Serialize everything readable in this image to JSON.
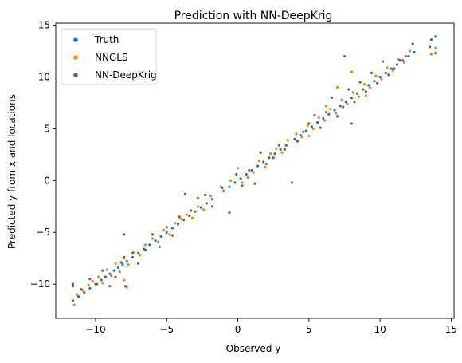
{
  "chart_data": {
    "type": "scatter",
    "title": "Prediction with NN-DeepKrig",
    "xlabel": "Observed y",
    "ylabel": "Predicted y from x and locations",
    "xlim": [
      -12.8,
      15.2
    ],
    "ylim": [
      -13.3,
      15.2
    ],
    "xticks": [
      -10,
      -5,
      0,
      5,
      10,
      15
    ],
    "yticks": [
      -10,
      -5,
      0,
      5,
      10,
      15
    ],
    "grid": false,
    "legend_position": "top-left",
    "series": [
      {
        "name": "Truth",
        "color": "#1f77b4",
        "points": [
          [
            -11.6,
            -11.6
          ],
          [
            -11.2,
            -11.2
          ],
          [
            -10.8,
            -10.8
          ],
          [
            -10.4,
            -10.4
          ],
          [
            -10.0,
            -10.0
          ],
          [
            -9.6,
            -9.6
          ],
          [
            -9.3,
            -9.3
          ],
          [
            -9.0,
            -9.0
          ],
          [
            -8.7,
            -8.7
          ],
          [
            -8.4,
            -8.4
          ],
          [
            -8.1,
            -8.1
          ],
          [
            -7.8,
            -7.8
          ],
          [
            -7.4,
            -7.4
          ],
          [
            -7.0,
            -7.0
          ],
          [
            -6.6,
            -6.6
          ],
          [
            -6.2,
            -6.2
          ],
          [
            -5.8,
            -5.8
          ],
          [
            -5.4,
            -5.4
          ],
          [
            -5.0,
            -5.0
          ],
          [
            -4.6,
            -4.6
          ],
          [
            -4.2,
            -4.2
          ],
          [
            -3.8,
            -3.8
          ],
          [
            -3.4,
            -3.4
          ],
          [
            -3.0,
            -3.0
          ],
          [
            -2.6,
            -2.6
          ],
          [
            -2.2,
            -2.2
          ],
          [
            -1.8,
            -1.8
          ],
          [
            -1.0,
            -1.0
          ],
          [
            -0.6,
            -0.6
          ],
          [
            -0.2,
            -0.2
          ],
          [
            0.2,
            0.2
          ],
          [
            0.6,
            0.6
          ],
          [
            1.0,
            1.0
          ],
          [
            1.4,
            1.4
          ],
          [
            1.8,
            1.8
          ],
          [
            2.2,
            2.2
          ],
          [
            2.6,
            2.6
          ],
          [
            3.0,
            3.0
          ],
          [
            3.4,
            3.4
          ],
          [
            4.0,
            4.0
          ],
          [
            4.4,
            4.4
          ],
          [
            4.8,
            4.8
          ],
          [
            5.2,
            5.2
          ],
          [
            5.6,
            5.6
          ],
          [
            6.0,
            6.0
          ],
          [
            6.4,
            6.4
          ],
          [
            6.8,
            6.8
          ],
          [
            7.2,
            7.2
          ],
          [
            7.6,
            7.6
          ],
          [
            8.0,
            8.0
          ],
          [
            8.4,
            8.4
          ],
          [
            8.8,
            8.8
          ],
          [
            9.2,
            9.2
          ],
          [
            9.6,
            9.6
          ],
          [
            10.0,
            10.0
          ],
          [
            10.4,
            10.4
          ],
          [
            10.8,
            10.8
          ],
          [
            11.2,
            11.2
          ],
          [
            11.6,
            11.6
          ],
          [
            12.0,
            12.0
          ],
          [
            12.4,
            12.4
          ],
          [
            13.6,
            13.6
          ],
          [
            13.9,
            13.9
          ]
        ]
      },
      {
        "name": "NNGLS",
        "color": "#ff7f0e",
        "points": [
          [
            -11.5,
            -12.0
          ],
          [
            -11.3,
            -11.0
          ],
          [
            -10.9,
            -10.6
          ],
          [
            -10.5,
            -10.1
          ],
          [
            -10.2,
            -9.7
          ],
          [
            -9.8,
            -9.3
          ],
          [
            -9.5,
            -9.9
          ],
          [
            -9.2,
            -8.6
          ],
          [
            -8.9,
            -9.2
          ],
          [
            -8.6,
            -8.0
          ],
          [
            -8.3,
            -8.8
          ],
          [
            -8.0,
            -7.5
          ],
          [
            -7.7,
            -8.1
          ],
          [
            -7.3,
            -6.9
          ],
          [
            -6.9,
            -7.2
          ],
          [
            -6.5,
            -6.2
          ],
          [
            -6.0,
            -5.6
          ],
          [
            -5.6,
            -5.9
          ],
          [
            -5.2,
            -4.8
          ],
          [
            -4.8,
            -5.2
          ],
          [
            -4.4,
            -4.1
          ],
          [
            -4.0,
            -3.7
          ],
          [
            -3.6,
            -3.3
          ],
          [
            -3.2,
            -3.6
          ],
          [
            -2.8,
            -2.5
          ],
          [
            -2.4,
            -2.8
          ],
          [
            -1.9,
            -1.5
          ],
          [
            -1.2,
            -0.6
          ],
          [
            -0.5,
            0.0
          ],
          [
            0.0,
            1.2
          ],
          [
            0.3,
            -0.2
          ],
          [
            0.7,
            0.3
          ],
          [
            1.1,
            0.8
          ],
          [
            1.5,
            1.9
          ],
          [
            1.9,
            1.3
          ],
          [
            2.3,
            2.6
          ],
          [
            2.7,
            3.1
          ],
          [
            3.1,
            2.7
          ],
          [
            3.5,
            3.9
          ],
          [
            4.1,
            4.5
          ],
          [
            4.5,
            4.2
          ],
          [
            4.9,
            5.3
          ],
          [
            5.3,
            5.0
          ],
          [
            5.7,
            6.1
          ],
          [
            6.1,
            5.8
          ],
          [
            6.5,
            6.9
          ],
          [
            6.9,
            6.5
          ],
          [
            7.3,
            7.8
          ],
          [
            7.7,
            7.4
          ],
          [
            8.1,
            8.5
          ],
          [
            8.5,
            8.1
          ],
          [
            8.9,
            9.3
          ],
          [
            9.3,
            9.0
          ],
          [
            9.7,
            10.1
          ],
          [
            10.1,
            9.8
          ],
          [
            10.5,
            10.9
          ],
          [
            10.9,
            10.6
          ],
          [
            11.3,
            11.7
          ],
          [
            11.7,
            11.4
          ],
          [
            12.1,
            12.5
          ],
          [
            13.6,
            12.2
          ],
          [
            13.9,
            12.8
          ],
          [
            7.0,
            9.0
          ],
          [
            8.0,
            10.5
          ],
          [
            9.0,
            8.2
          ],
          [
            -8.0,
            -9.6
          ],
          [
            -7.8,
            -10.3
          ],
          [
            5.0,
            4.3
          ],
          [
            6.2,
            7.2
          ]
        ]
      },
      {
        "name": "NN-DeepKrig",
        "color": "#8c564b",
        "points": [
          [
            -11.6,
            -10.2
          ],
          [
            -11.0,
            -10.5
          ],
          [
            -10.4,
            -9.5
          ],
          [
            -9.9,
            -10.0
          ],
          [
            -9.5,
            -8.7
          ],
          [
            -9.0,
            -10.2
          ],
          [
            -8.6,
            -9.3
          ],
          [
            -8.2,
            -7.9
          ],
          [
            -8.0,
            -7.4
          ],
          [
            -7.9,
            -10.2
          ],
          [
            -7.4,
            -7.0
          ],
          [
            -7.0,
            -8.0
          ],
          [
            -6.5,
            -6.7
          ],
          [
            -6.0,
            -5.2
          ],
          [
            -5.5,
            -6.4
          ],
          [
            -5.0,
            -4.5
          ],
          [
            -4.6,
            -5.3
          ],
          [
            -4.1,
            -3.5
          ],
          [
            -3.7,
            -1.3
          ],
          [
            -3.3,
            -2.9
          ],
          [
            -2.8,
            -1.7
          ],
          [
            -2.3,
            -1.4
          ],
          [
            -1.8,
            -2.5
          ],
          [
            -1.1,
            -0.7
          ],
          [
            -0.6,
            -3.1
          ],
          [
            -0.1,
            0.6
          ],
          [
            0.3,
            -0.5
          ],
          [
            0.8,
            1.0
          ],
          [
            1.2,
            -0.3
          ],
          [
            1.6,
            2.7
          ],
          [
            2.0,
            1.6
          ],
          [
            2.5,
            2.2
          ],
          [
            2.9,
            3.4
          ],
          [
            3.3,
            3.0
          ],
          [
            3.8,
            -0.2
          ],
          [
            4.2,
            3.8
          ],
          [
            4.6,
            4.7
          ],
          [
            5.0,
            5.5
          ],
          [
            5.4,
            6.3
          ],
          [
            5.8,
            5.1
          ],
          [
            6.2,
            6.6
          ],
          [
            6.6,
            8.0
          ],
          [
            7.0,
            6.2
          ],
          [
            7.4,
            7.1
          ],
          [
            7.8,
            8.8
          ],
          [
            8.2,
            7.6
          ],
          [
            8.6,
            9.5
          ],
          [
            9.0,
            8.6
          ],
          [
            9.4,
            10.4
          ],
          [
            9.8,
            9.4
          ],
          [
            10.2,
            11.5
          ],
          [
            10.6,
            10.2
          ],
          [
            11.0,
            10.8
          ],
          [
            11.4,
            11.6
          ],
          [
            11.8,
            12.0
          ],
          [
            12.3,
            13.2
          ],
          [
            13.5,
            12.9
          ],
          [
            13.9,
            12.3
          ],
          [
            7.5,
            12.0
          ],
          [
            -8.0,
            -5.2
          ],
          [
            8.0,
            5.5
          ],
          [
            -11.6,
            -10.0
          ]
        ]
      }
    ]
  }
}
